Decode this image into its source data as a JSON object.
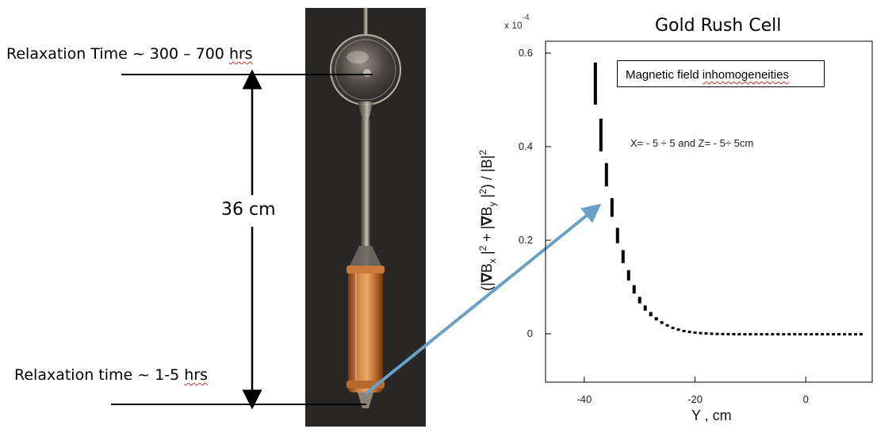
{
  "labels": {
    "top_relaxation_prefix": "Relaxation Time ~ 300 – 700 ",
    "top_relaxation_unit": "hrs",
    "bottom_relaxation_prefix": "Relaxation time ~ 1-5 ",
    "bottom_relaxation_unit": "hrs",
    "length": "36 cm"
  },
  "chart": {
    "title": "Gold Rush Cell",
    "exponent": "x 10",
    "exponent_power": "-4",
    "legend_prefix": "Magnetic field ",
    "legend_word": "inhomogeneities",
    "range_note": "X= - 5 ÷ 5  and  Z= - 5÷ 5cm",
    "xlabel": "Y , cm",
    "ylabel": "(|∇B_x|² + |∇B_y|²) / |B|²"
  },
  "colors": {
    "arrow": "#6a9fc6",
    "copper": "#b8692a",
    "photo_bg": "#2c2b2a"
  },
  "chart_data": {
    "type": "scatter",
    "title": "Gold Rush Cell",
    "xlabel": "Y , cm",
    "ylabel": "(|∇B_x|² + |∇B_y|²) / |B|²",
    "y_scale_note": "x 10^-4",
    "xlim": [
      -47,
      12
    ],
    "ylim": [
      -0.1,
      0.6
    ],
    "xticks": [
      "-40",
      "-20",
      "0"
    ],
    "yticks": [
      "0",
      "0.2",
      "0.4",
      "0.6"
    ],
    "series": [
      {
        "x": [
          -38,
          -37,
          -36,
          -35,
          -34,
          -33,
          -32,
          -31,
          -30,
          -29,
          -28,
          -27,
          -26,
          -25,
          -24,
          -23,
          -22,
          -21,
          -20,
          -19,
          -18,
          -17,
          -16,
          -15,
          -14,
          -13,
          -12,
          -11,
          -10,
          -9,
          -8,
          -7,
          -6,
          -5,
          -4,
          -3,
          -2,
          -1,
          0,
          1,
          2,
          3,
          4,
          5,
          6,
          7,
          8,
          9,
          10
        ],
        "y": [
          0.535,
          0.425,
          0.34,
          0.27,
          0.21,
          0.165,
          0.125,
          0.095,
          0.072,
          0.055,
          0.042,
          0.032,
          0.024,
          0.018,
          0.013,
          0.0095,
          0.007,
          0.005,
          0.0035,
          0.0025,
          0.0018,
          0.0012,
          0.0008,
          0.0005,
          0.0003,
          0.0002,
          0.0001,
          0,
          0,
          0,
          0,
          0,
          0,
          0,
          0,
          0,
          0,
          0,
          0,
          0,
          0,
          0,
          0,
          0,
          0,
          0,
          0,
          0,
          0
        ],
        "dy": [
          0.09,
          0.07,
          0.05,
          0.04,
          0.033,
          0.028,
          0.022,
          0.018,
          0.014,
          0.011,
          0.009,
          0.007,
          0.006,
          0.005,
          0.004,
          0.004,
          0.003,
          0.003,
          0.003,
          0.003,
          0.003,
          0.003,
          0.003,
          0.003,
          0.003,
          0.003,
          0.003,
          0.003,
          0.003,
          0.003,
          0.003,
          0.003,
          0.003,
          0.003,
          0.003,
          0.003,
          0.003,
          0.003,
          0.003,
          0.003,
          0.003,
          0.003,
          0.003,
          0.003,
          0.003,
          0.003,
          0.003,
          0.003,
          0.003
        ]
      }
    ]
  }
}
